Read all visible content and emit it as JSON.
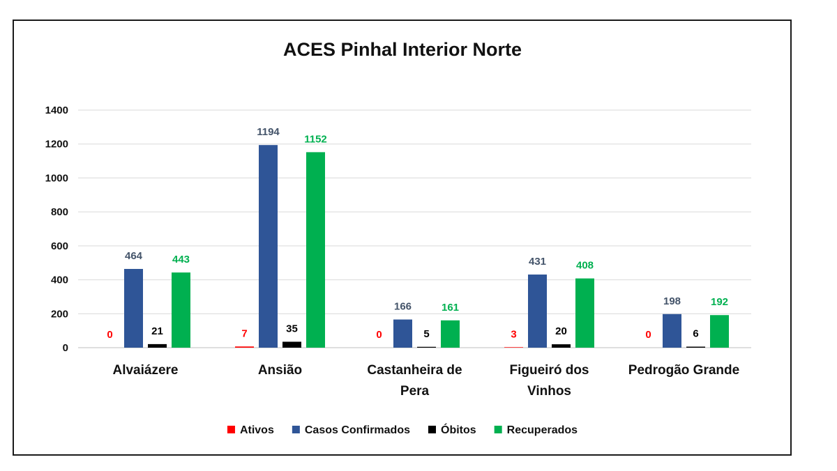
{
  "chart_data": {
    "type": "bar",
    "title": "ACES Pinhal Interior Norte",
    "categories": [
      [
        "Alvaiázere"
      ],
      [
        "Ansião"
      ],
      [
        "Castanheira de",
        "Pera"
      ],
      [
        "Figueiró dos",
        "Vinhos"
      ],
      [
        "Pedrogão Grande"
      ]
    ],
    "series": [
      {
        "name": "Ativos",
        "color": "#ff0000",
        "label_color": "#ff0000",
        "values": [
          0,
          7,
          0,
          3,
          0
        ]
      },
      {
        "name": "Casos Confirmados",
        "color": "#2f5597",
        "label_color": "#44546a",
        "values": [
          464,
          1194,
          166,
          431,
          198
        ]
      },
      {
        "name": "Óbitos",
        "color": "#000000",
        "label_color": "#000000",
        "values": [
          21,
          35,
          5,
          20,
          6
        ]
      },
      {
        "name": "Recuperados",
        "color": "#00b050",
        "label_color": "#00b050",
        "values": [
          443,
          1152,
          161,
          408,
          192
        ]
      }
    ],
    "ylim": [
      0,
      1400
    ],
    "yticks": [
      0,
      200,
      400,
      600,
      800,
      1000,
      1200,
      1400
    ],
    "grid": true,
    "legend_position": "bottom"
  }
}
